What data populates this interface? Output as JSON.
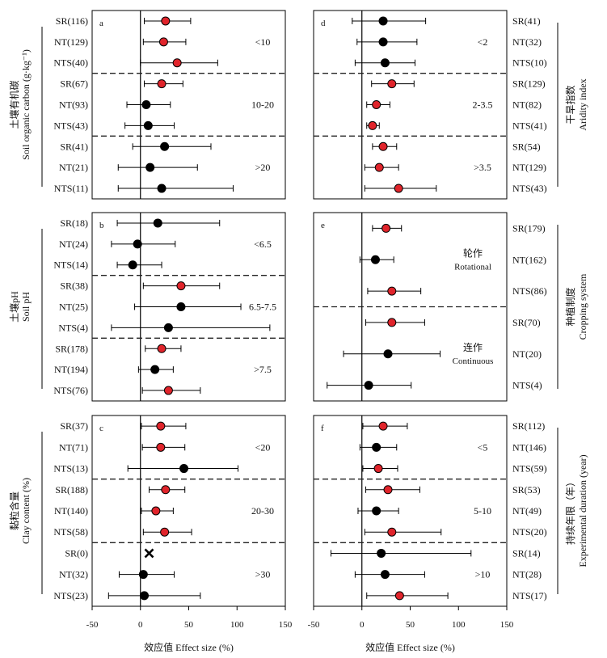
{
  "colors": {
    "significant": "#e0242b",
    "nonsignificant": "#000000",
    "frame": "#000000",
    "divider": "#222222"
  },
  "x_axis": {
    "label": "效应值 Effect size (%)",
    "ticks": [
      -50,
      0,
      50,
      100,
      150
    ]
  },
  "chart_data": [
    {
      "type": "scatter",
      "panel": "a",
      "position": "left",
      "ylabel_zh": "土壤有机碳",
      "ylabel_en": "Soil organic carbon (g·kg⁻¹)",
      "xlim": [
        -50,
        150
      ],
      "xlabel": "效应值 Effect size (%)",
      "groups": [
        {
          "label": "<10",
          "label_en": "",
          "rows": [
            {
              "name": "SR(116)",
              "mean": 26,
              "low": 4,
              "high": 52,
              "significant": true
            },
            {
              "name": "NT(129)",
              "mean": 24,
              "low": 3,
              "high": 47,
              "significant": true
            },
            {
              "name": "NTS(40)",
              "mean": 38,
              "low": 0,
              "high": 80,
              "significant": true
            }
          ]
        },
        {
          "label": "10-20",
          "label_en": "",
          "rows": [
            {
              "name": "SR(67)",
              "mean": 22,
              "low": 4,
              "high": 44,
              "significant": true
            },
            {
              "name": "NT(93)",
              "mean": 6,
              "low": -14,
              "high": 31,
              "significant": false
            },
            {
              "name": "NTS(43)",
              "mean": 8,
              "low": -16,
              "high": 35,
              "significant": false
            }
          ]
        },
        {
          "label": ">20",
          "label_en": "",
          "rows": [
            {
              "name": "SR(41)",
              "mean": 25,
              "low": -8,
              "high": 73,
              "significant": false
            },
            {
              "name": "NT(21)",
              "mean": 10,
              "low": -23,
              "high": 59,
              "significant": false
            },
            {
              "name": "NTS(11)",
              "mean": 22,
              "low": -23,
              "high": 96,
              "significant": false
            }
          ]
        }
      ]
    },
    {
      "type": "scatter",
      "panel": "b",
      "position": "left",
      "ylabel_zh": "土壤pH",
      "ylabel_en": "Soil pH",
      "xlim": [
        -50,
        150
      ],
      "xlabel": "效应值 Effect size (%)",
      "groups": [
        {
          "label": "<6.5",
          "label_en": "",
          "rows": [
            {
              "name": "SR(18)",
              "mean": 18,
              "low": -24,
              "high": 82,
              "significant": false
            },
            {
              "name": "NT(24)",
              "mean": -3,
              "low": -30,
              "high": 36,
              "significant": false
            },
            {
              "name": "NTS(14)",
              "mean": -8,
              "low": -24,
              "high": 22,
              "significant": false
            }
          ]
        },
        {
          "label": "6.5-7.5",
          "label_en": "",
          "rows": [
            {
              "name": "SR(38)",
              "mean": 42,
              "low": 3,
              "high": 82,
              "significant": true
            },
            {
              "name": "NT(25)",
              "mean": 42,
              "low": -6,
              "high": 104,
              "significant": false
            },
            {
              "name": "NTS(4)",
              "mean": 29,
              "low": -30,
              "high": 134,
              "significant": false
            }
          ]
        },
        {
          "label": ">7.5",
          "label_en": "",
          "rows": [
            {
              "name": "SR(178)",
              "mean": 22,
              "low": 5,
              "high": 42,
              "significant": true
            },
            {
              "name": "NT(194)",
              "mean": 15,
              "low": -2,
              "high": 34,
              "significant": false
            },
            {
              "name": "NTS(76)",
              "mean": 29,
              "low": 2,
              "high": 62,
              "significant": true
            }
          ]
        }
      ]
    },
    {
      "type": "scatter",
      "panel": "c",
      "position": "left",
      "ylabel_zh": "黏粒含量",
      "ylabel_en": "Clay content (%)",
      "xlim": [
        -50,
        150
      ],
      "xlabel": "效应值 Effect size (%)",
      "groups": [
        {
          "label": "<20",
          "label_en": "",
          "rows": [
            {
              "name": "SR(37)",
              "mean": 21,
              "low": 1,
              "high": 47,
              "significant": true
            },
            {
              "name": "NT(71)",
              "mean": 21,
              "low": 2,
              "high": 46,
              "significant": true
            },
            {
              "name": "NTS(13)",
              "mean": 45,
              "low": -13,
              "high": 101,
              "significant": false
            }
          ]
        },
        {
          "label": "20-30",
          "label_en": "",
          "rows": [
            {
              "name": "SR(188)",
              "mean": 26,
              "low": 9,
              "high": 46,
              "significant": true
            },
            {
              "name": "NT(140)",
              "mean": 16,
              "low": 1,
              "high": 34,
              "significant": true
            },
            {
              "name": "NTS(58)",
              "mean": 25,
              "low": 3,
              "high": 53,
              "significant": true
            }
          ]
        },
        {
          "label": ">30",
          "label_en": "",
          "rows": [
            {
              "name": "SR(0)",
              "mean": 9,
              "low": null,
              "high": null,
              "significant": null,
              "no_data": true
            },
            {
              "name": "NT(32)",
              "mean": 3,
              "low": -22,
              "high": 35,
              "significant": false
            },
            {
              "name": "NTS(23)",
              "mean": 4,
              "low": -33,
              "high": 62,
              "significant": false
            }
          ]
        }
      ]
    },
    {
      "type": "scatter",
      "panel": "d",
      "position": "right",
      "ylabel_zh": "干旱指数",
      "ylabel_en": "Aridity index",
      "xlim": [
        -50,
        150
      ],
      "xlabel": "效应值 Effect size (%)",
      "groups": [
        {
          "label": "<2",
          "label_en": "",
          "rows": [
            {
              "name": "SR(41)",
              "mean": 22,
              "low": -10,
              "high": 66,
              "significant": false
            },
            {
              "name": "NT(32)",
              "mean": 22,
              "low": -5,
              "high": 57,
              "significant": false
            },
            {
              "name": "NTS(10)",
              "mean": 24,
              "low": -7,
              "high": 55,
              "significant": false
            }
          ]
        },
        {
          "label": "2-3.5",
          "label_en": "",
          "rows": [
            {
              "name": "SR(129)",
              "mean": 31,
              "low": 10,
              "high": 54,
              "significant": true
            },
            {
              "name": "NT(82)",
              "mean": 15,
              "low": 5,
              "high": 29,
              "significant": true
            },
            {
              "name": "NTS(41)",
              "mean": 11,
              "low": 5,
              "high": 18,
              "significant": true
            }
          ]
        },
        {
          "label": ">3.5",
          "label_en": "",
          "rows": [
            {
              "name": "SR(54)",
              "mean": 22,
              "low": 11,
              "high": 36,
              "significant": true
            },
            {
              "name": "NT(129)",
              "mean": 18,
              "low": 3,
              "high": 38,
              "significant": true
            },
            {
              "name": "NTS(43)",
              "mean": 38,
              "low": 3,
              "high": 77,
              "significant": true
            }
          ]
        }
      ]
    },
    {
      "type": "scatter",
      "panel": "e",
      "position": "right",
      "ylabel_zh": "种植制度",
      "ylabel_en": "Cropping system",
      "xlim": [
        -50,
        150
      ],
      "xlabel": "效应值 Effect size (%)",
      "groups": [
        {
          "label": "轮作",
          "label_en": "Rotational",
          "rows": [
            {
              "name": "SR(179)",
              "mean": 25,
              "low": 11,
              "high": 41,
              "significant": true
            },
            {
              "name": "NT(162)",
              "mean": 14,
              "low": -2,
              "high": 33,
              "significant": false
            },
            {
              "name": "NTS(86)",
              "mean": 31,
              "low": 6,
              "high": 61,
              "significant": true
            }
          ]
        },
        {
          "label": "连作",
          "label_en": "Continuous",
          "rows": [
            {
              "name": "SR(70)",
              "mean": 31,
              "low": 4,
              "high": 65,
              "significant": true
            },
            {
              "name": "NT(20)",
              "mean": 27,
              "low": -19,
              "high": 81,
              "significant": false
            },
            {
              "name": "NTS(4)",
              "mean": 7,
              "low": -36,
              "high": 51,
              "significant": false
            }
          ]
        }
      ]
    },
    {
      "type": "scatter",
      "panel": "f",
      "position": "right",
      "ylabel_zh": "持续年限（年）",
      "ylabel_en": "Experimental duration (year)",
      "xlim": [
        -50,
        150
      ],
      "xlabel": "效应值 Effect size (%)",
      "groups": [
        {
          "label": "<5",
          "label_en": "",
          "rows": [
            {
              "name": "SR(112)",
              "mean": 22,
              "low": 1,
              "high": 47,
              "significant": true
            },
            {
              "name": "NT(146)",
              "mean": 15,
              "low": -2,
              "high": 36,
              "significant": false
            },
            {
              "name": "NTS(59)",
              "mean": 17,
              "low": 1,
              "high": 37,
              "significant": true
            }
          ]
        },
        {
          "label": "5-10",
          "label_en": "",
          "rows": [
            {
              "name": "SR(53)",
              "mean": 27,
              "low": 4,
              "high": 60,
              "significant": true
            },
            {
              "name": "NT(49)",
              "mean": 15,
              "low": -4,
              "high": 38,
              "significant": false
            },
            {
              "name": "NTS(20)",
              "mean": 31,
              "low": 3,
              "high": 82,
              "significant": true
            }
          ]
        },
        {
          "label": ">10",
          "label_en": "",
          "rows": [
            {
              "name": "SR(14)",
              "mean": 20,
              "low": -32,
              "high": 113,
              "significant": false
            },
            {
              "name": "NT(28)",
              "mean": 24,
              "low": -7,
              "high": 65,
              "significant": false
            },
            {
              "name": "NTS(17)",
              "mean": 39,
              "low": 5,
              "high": 89,
              "significant": true
            }
          ]
        }
      ]
    }
  ]
}
